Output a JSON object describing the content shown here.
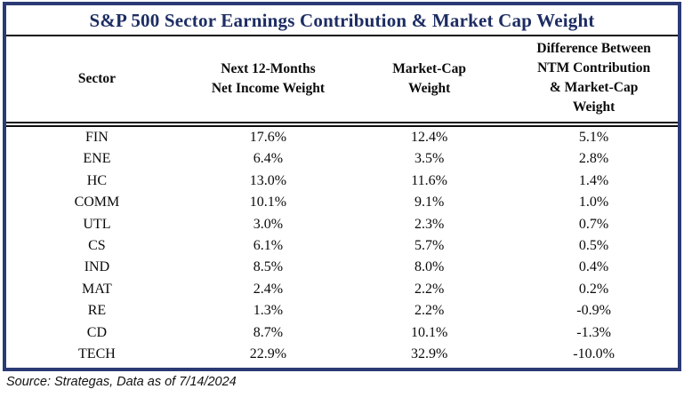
{
  "title": "S&P 500 Sector Earnings Contribution & Market Cap Weight",
  "source_note": "Source: Strategas, Data as of 7/14/2024",
  "colors": {
    "navy_border": "#2b3a74",
    "navy_title_text": "#1d2d63",
    "body_text": "#0a0a0a",
    "background": "#ffffff"
  },
  "table": {
    "columns": [
      {
        "label": "Sector",
        "lines": [
          "Sector"
        ]
      },
      {
        "label": "Next 12-Months Net Income Weight",
        "lines": [
          "Next 12-Months",
          "Net Income Weight"
        ]
      },
      {
        "label": "Market-Cap Weight",
        "lines": [
          "Market-Cap",
          "Weight"
        ]
      },
      {
        "label": "Difference Between NTM Contribution & Market-Cap Weight",
        "lines": [
          "Difference Between",
          "NTM Contribution",
          "& Market-Cap",
          "Weight"
        ]
      }
    ],
    "rows": [
      {
        "sector": "FIN",
        "ntm": "17.6%",
        "mcap": "12.4%",
        "diff": "5.1%"
      },
      {
        "sector": "ENE",
        "ntm": "6.4%",
        "mcap": "3.5%",
        "diff": "2.8%"
      },
      {
        "sector": "HC",
        "ntm": "13.0%",
        "mcap": "11.6%",
        "diff": "1.4%"
      },
      {
        "sector": "COMM",
        "ntm": "10.1%",
        "mcap": "9.1%",
        "diff": "1.0%"
      },
      {
        "sector": "UTL",
        "ntm": "3.0%",
        "mcap": "2.3%",
        "diff": "0.7%"
      },
      {
        "sector": "CS",
        "ntm": "6.1%",
        "mcap": "5.7%",
        "diff": "0.5%"
      },
      {
        "sector": "IND",
        "ntm": "8.5%",
        "mcap": "8.0%",
        "diff": "0.4%"
      },
      {
        "sector": "MAT",
        "ntm": "2.4%",
        "mcap": "2.2%",
        "diff": "0.2%"
      },
      {
        "sector": "RE",
        "ntm": "1.3%",
        "mcap": "2.2%",
        "diff": "-0.9%"
      },
      {
        "sector": "CD",
        "ntm": "8.7%",
        "mcap": "10.1%",
        "diff": "-1.3%"
      },
      {
        "sector": "TECH",
        "ntm": "22.9%",
        "mcap": "32.9%",
        "diff": "-10.0%"
      }
    ]
  },
  "chart_data": {
    "type": "table",
    "title": "S&P 500 Sector Earnings Contribution & Market Cap Weight",
    "columns": [
      "Sector",
      "Next 12-Months Net Income Weight",
      "Market-Cap Weight",
      "Difference Between NTM Contribution & Market-Cap Weight"
    ],
    "units": "%",
    "rows": [
      [
        "FIN",
        17.6,
        12.4,
        5.1
      ],
      [
        "ENE",
        6.4,
        3.5,
        2.8
      ],
      [
        "HC",
        13.0,
        11.6,
        1.4
      ],
      [
        "COMM",
        10.1,
        9.1,
        1.0
      ],
      [
        "UTL",
        3.0,
        2.3,
        0.7
      ],
      [
        "CS",
        6.1,
        5.7,
        0.5
      ],
      [
        "IND",
        8.5,
        8.0,
        0.4
      ],
      [
        "MAT",
        2.4,
        2.2,
        0.2
      ],
      [
        "RE",
        1.3,
        2.2,
        -0.9
      ],
      [
        "CD",
        8.7,
        10.1,
        -1.3
      ],
      [
        "TECH",
        22.9,
        32.9,
        -10.0
      ]
    ],
    "source": "Source: Strategas, Data as of 7/14/2024"
  }
}
